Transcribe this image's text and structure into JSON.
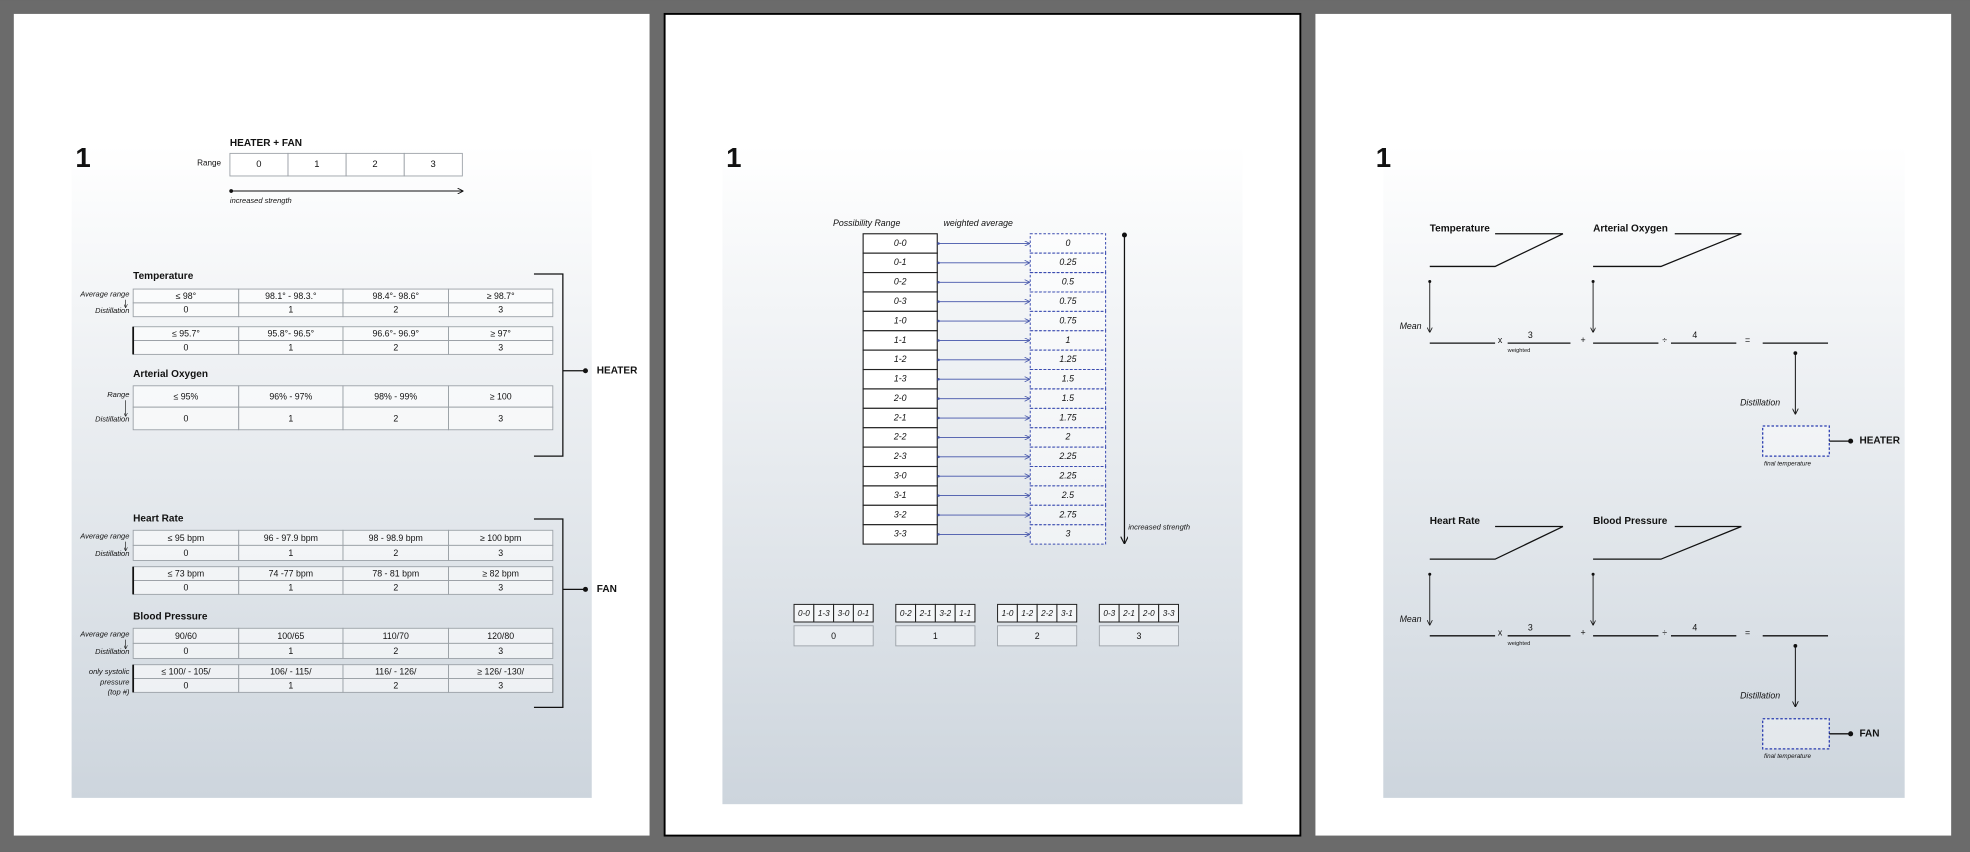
{
  "page1": {
    "number": "1",
    "scale": {
      "title": "HEATER + FAN",
      "label": "Range",
      "levels": [
        "0",
        "1",
        "2",
        "3"
      ],
      "caption": "increased strength"
    },
    "heater": {
      "label": "HEATER",
      "groups": [
        {
          "title": "Temperature",
          "tables": [
            {
              "row_labels": [
                "Average range",
                "Distillation"
              ],
              "ranges": [
                "≤ 98°",
                "98.1° - 98.3.°",
                "98.4°- 98.6°",
                "≥ 98.7°"
              ],
              "levels": [
                "0",
                "1",
                "2",
                "3"
              ]
            },
            {
              "ranges": [
                "≤ 95.7°",
                "95.8°- 96.5°",
                "96.6°- 96.9°",
                "≥ 97°"
              ],
              "levels": [
                "0",
                "1",
                "2",
                "3"
              ]
            }
          ]
        },
        {
          "title": "Arterial Oxygen",
          "tables": [
            {
              "row_labels": [
                "Range",
                "Distillation"
              ],
              "ranges": [
                "≤ 95%",
                "96% - 97%",
                "98% - 99%",
                "≥ 100"
              ],
              "levels": [
                "0",
                "1",
                "2",
                "3"
              ]
            }
          ]
        }
      ]
    },
    "fan": {
      "label": "FAN",
      "groups": [
        {
          "title": "Heart Rate",
          "tables": [
            {
              "row_labels": [
                "Average range",
                "Distillation"
              ],
              "ranges": [
                "≤ 95 bpm",
                "96 - 97.9 bpm",
                "98 - 98.9 bpm",
                "≥ 100 bpm"
              ],
              "levels": [
                "0",
                "1",
                "2",
                "3"
              ]
            },
            {
              "ranges": [
                "≤ 73 bpm",
                "74 -77 bpm",
                "78 - 81 bpm",
                "≥ 82 bpm"
              ],
              "levels": [
                "0",
                "1",
                "2",
                "3"
              ]
            }
          ]
        },
        {
          "title": "Blood Pressure",
          "tables": [
            {
              "row_labels": [
                "Average range",
                "Distillation"
              ],
              "ranges": [
                "90/60",
                "100/65",
                "110/70",
                "120/80"
              ],
              "levels": [
                "0",
                "1",
                "2",
                "3"
              ]
            },
            {
              "side_label": [
                "only systolic",
                "pressure",
                "(top #)"
              ],
              "ranges": [
                "≤ 100/ - 105/",
                "106/ - 115/",
                "116/ - 126/",
                "≥ 126/ -130/"
              ],
              "levels": [
                "0",
                "1",
                "2",
                "3"
              ]
            }
          ]
        }
      ]
    }
  },
  "page2": {
    "number": "1",
    "headers": [
      "Possibility Range",
      "weighted average"
    ],
    "combos": [
      "0-0",
      "0-1",
      "0-2",
      "0-3",
      "1-0",
      "1-1",
      "1-2",
      "1-3",
      "2-0",
      "2-1",
      "2-2",
      "2-3",
      "3-0",
      "3-1",
      "3-2",
      "3-3"
    ],
    "averages": [
      0,
      0.25,
      0.5,
      0.75,
      0.75,
      1,
      1.25,
      1.5,
      1.5,
      1.75,
      2,
      2.25,
      2.25,
      2.5,
      2.75,
      3
    ],
    "caption": "increased strength",
    "buckets": [
      {
        "combos": [
          "0-0",
          "1-3",
          "3-0",
          "0-1"
        ],
        "level": "0"
      },
      {
        "combos": [
          "0-2",
          "2-1",
          "3-2",
          "1-1"
        ],
        "level": "1"
      },
      {
        "combos": [
          "1-0",
          "1-2",
          "2-2",
          "3-1"
        ],
        "level": "2"
      },
      {
        "combos": [
          "0-3",
          "2-1",
          "2-0",
          "3-3"
        ],
        "level": "3"
      }
    ]
  },
  "page3": {
    "number": "1",
    "heater": {
      "inputs": [
        "Temperature",
        "Arterial Oxygen"
      ],
      "mean": "Mean",
      "operators": [
        "x",
        "+",
        "÷",
        "="
      ],
      "weight": "3",
      "weight_note": "weighted",
      "divisor": "4",
      "distillation": "Distillation",
      "output": "HEATER",
      "output_note": "final temperature"
    },
    "fan": {
      "inputs": [
        "Heart Rate",
        "Blood Pressure"
      ],
      "mean": "Mean",
      "operators": [
        "x",
        "+",
        "÷",
        "="
      ],
      "weight": "3",
      "weight_note": "weighted",
      "divisor": "4",
      "distillation": "Distillation",
      "output": "FAN",
      "output_note": "final temperature"
    }
  }
}
